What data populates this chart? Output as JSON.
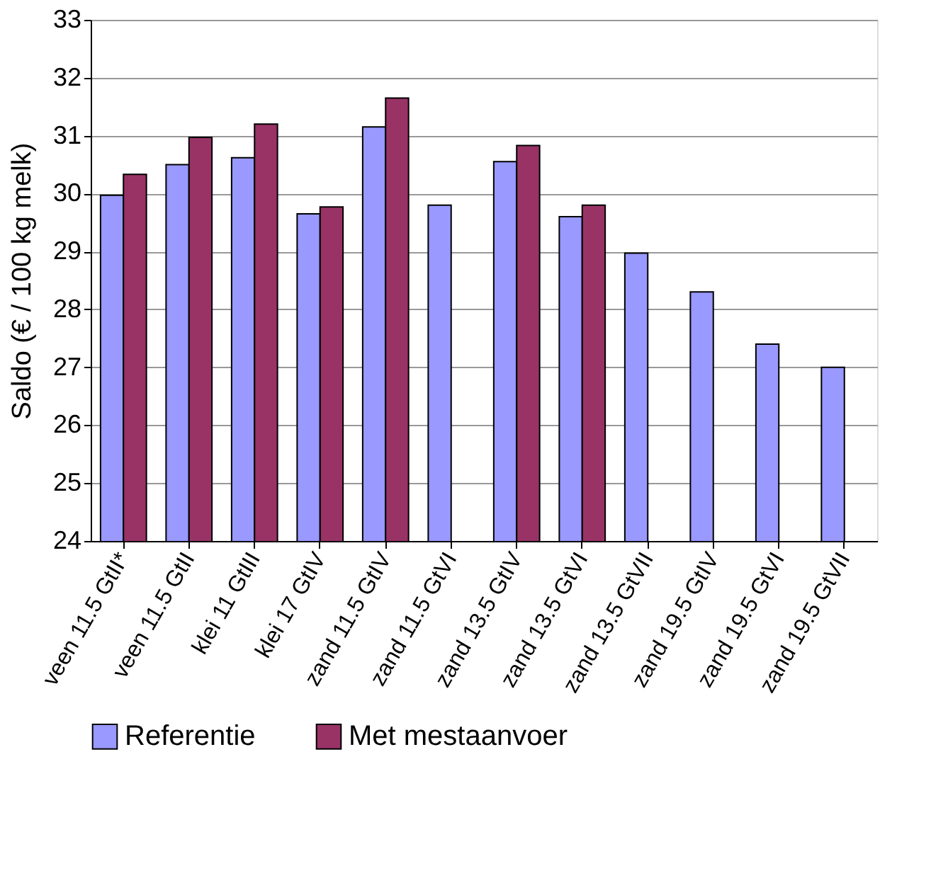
{
  "chart_data": {
    "type": "bar",
    "ylabel": "Saldo (€ / 100 kg melk)",
    "categories": [
      "veen 11.5 GtII*",
      "veen 11.5 GtII",
      "klei 11 GtIII",
      "klei 17 GtIV",
      "zand 11.5 GtIV",
      "zand 11.5 GtVI",
      "zand 13.5 GtIV",
      "zand 13.5 GtVI",
      "zand 13.5 GtVII",
      "zand 19.5 GtIV",
      "zand 19.5 GtVI",
      "zand 19.5 GtVII"
    ],
    "series": [
      {
        "name": "Referentie",
        "color": "#9999ff",
        "values": [
          29.97,
          30.5,
          30.62,
          29.65,
          31.15,
          29.8,
          30.55,
          29.6,
          28.97,
          28.3,
          27.4,
          27.0
        ]
      },
      {
        "name": "Met mestaanvoer",
        "color": "#993366",
        "values": [
          30.33,
          30.97,
          31.2,
          29.77,
          31.65,
          null,
          30.83,
          29.8,
          null,
          null,
          null,
          null
        ]
      }
    ],
    "ylim": [
      24,
      33
    ],
    "yticks": [
      24,
      25,
      26,
      27,
      28,
      29,
      30,
      31,
      32,
      33
    ],
    "grid": "y",
    "legend": "bottom"
  }
}
